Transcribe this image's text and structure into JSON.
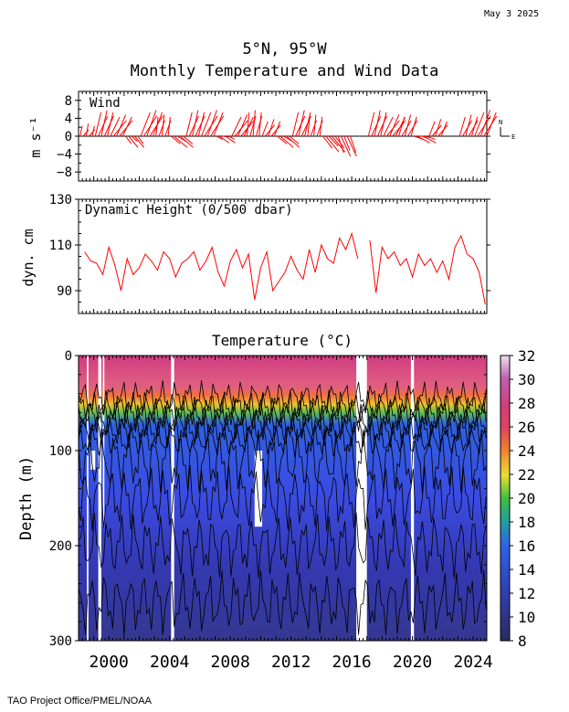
{
  "date_stamp": "May  3 2025",
  "title_line1": "5°N, 95°W",
  "title_line2": "Monthly Temperature and Wind Data",
  "footer": "TAO Project Office/PMEL/NOAA",
  "colors": {
    "wind": "#ff0000",
    "dyn_height": "#ff0000",
    "axis": "#000000"
  },
  "chart_data": [
    {
      "type": "line",
      "panel": "wind",
      "title": "Wind",
      "ylabel": "m s⁻¹",
      "ylim": [
        -10,
        10
      ],
      "yticks": [
        8,
        4,
        0,
        -4,
        -8
      ],
      "yticklabels": [
        "8",
        "4",
        "0",
        "−4",
        "−8"
      ],
      "compass": {
        "north": "N",
        "east": "E"
      },
      "series": [
        {
          "x": [
            1998.5,
            1999.5,
            2000.5,
            2001.5,
            2002.5,
            2003.5,
            2004.5,
            2005.5,
            2006.5,
            2007.5,
            2008.5,
            2009.5,
            2010.5,
            2011.5,
            2012.5,
            2013.5,
            2014.5,
            2015.5,
            2016.5,
            2017.5,
            2018.5,
            2019.5,
            2020.5,
            2021.5,
            2022.5,
            2023.5,
            2024.5
          ],
          "u": [
            1,
            2,
            3,
            2,
            3,
            1,
            3,
            2,
            3,
            2,
            3,
            1,
            2,
            3,
            2,
            1,
            3,
            2,
            null,
            2,
            3,
            2,
            3,
            2,
            null,
            2,
            3
          ],
          "v": [
            2,
            5,
            4,
            -2,
            5,
            4,
            -2,
            5,
            5,
            -1,
            4,
            5,
            3,
            -2,
            5,
            4,
            -3,
            -4,
            null,
            5,
            4,
            4,
            -1,
            3,
            null,
            4,
            5
          ]
        }
      ]
    },
    {
      "type": "line",
      "panel": "dynamic_height",
      "title": "Dynamic Height (0/500 dbar)",
      "ylabel": "dyn. cm",
      "ylim": [
        80,
        130
      ],
      "yticks": [
        130,
        110,
        90
      ],
      "series": [
        {
          "x": [
            1998.4,
            1998.8,
            1999.2,
            1999.6,
            2000.0,
            2000.4,
            2000.8,
            2001.2,
            2001.6,
            2002.0,
            2002.4,
            2002.8,
            2003.2,
            2003.6,
            2004.0,
            2004.4,
            2004.8,
            2005.2,
            2005.6,
            2006.0,
            2006.4,
            2006.8,
            2007.2,
            2007.6,
            2008.0,
            2008.4,
            2008.8,
            2009.2,
            2009.6,
            2010.0,
            2010.4,
            2010.8,
            2011.2,
            2011.6,
            2012.0,
            2012.4,
            2012.8,
            2013.2,
            2013.6,
            2014.0,
            2014.4,
            2014.8,
            2015.2,
            2015.6,
            2016.0,
            2016.4
          ],
          "y": [
            107,
            103,
            102,
            97,
            109,
            101,
            90,
            104,
            97,
            100,
            106,
            103,
            99,
            107,
            104,
            96,
            102,
            104,
            107,
            99,
            103,
            109,
            98,
            92,
            103,
            108,
            100,
            106,
            86,
            100,
            107,
            90,
            94,
            98,
            105,
            99,
            95,
            108,
            98,
            110,
            104,
            102,
            113,
            108,
            115,
            104
          ]
        },
        {
          "x": [
            2017.2,
            2017.6,
            2018.0,
            2018.4,
            2018.8,
            2019.2,
            2019.6,
            2020.0,
            2020.4,
            2020.8,
            2021.2,
            2021.6,
            2022.0,
            2022.4,
            2022.8,
            2023.2,
            2023.6,
            2024.0,
            2024.4,
            2024.8
          ],
          "y": [
            112,
            89,
            109,
            104,
            107,
            101,
            104,
            96,
            106,
            101,
            104,
            98,
            103,
            95,
            109,
            114,
            106,
            104,
            98,
            84
          ]
        }
      ]
    },
    {
      "type": "heatmap",
      "panel": "temperature",
      "title": "Temperature (°C)",
      "ylabel": "Depth (m)",
      "ylim": [
        300,
        0
      ],
      "yticks": [
        0,
        100,
        200,
        300
      ],
      "xlim": [
        1998.0,
        2024.9
      ],
      "xticks": [
        2000,
        2004,
        2008,
        2012,
        2016,
        2020,
        2024
      ],
      "colorbar": {
        "range": [
          8,
          32
        ],
        "ticks": [
          32,
          30,
          28,
          26,
          24,
          22,
          20,
          18,
          16,
          14,
          12,
          10,
          8
        ]
      },
      "depth_profile": {
        "depth": [
          0,
          30,
          45,
          55,
          65,
          75,
          90,
          110,
          150,
          200,
          250,
          300
        ],
        "temperature": [
          28.5,
          28.0,
          26.5,
          24.0,
          21.0,
          18.0,
          16.0,
          15.0,
          14.2,
          13.5,
          12.5,
          12.0
        ]
      }
    }
  ]
}
